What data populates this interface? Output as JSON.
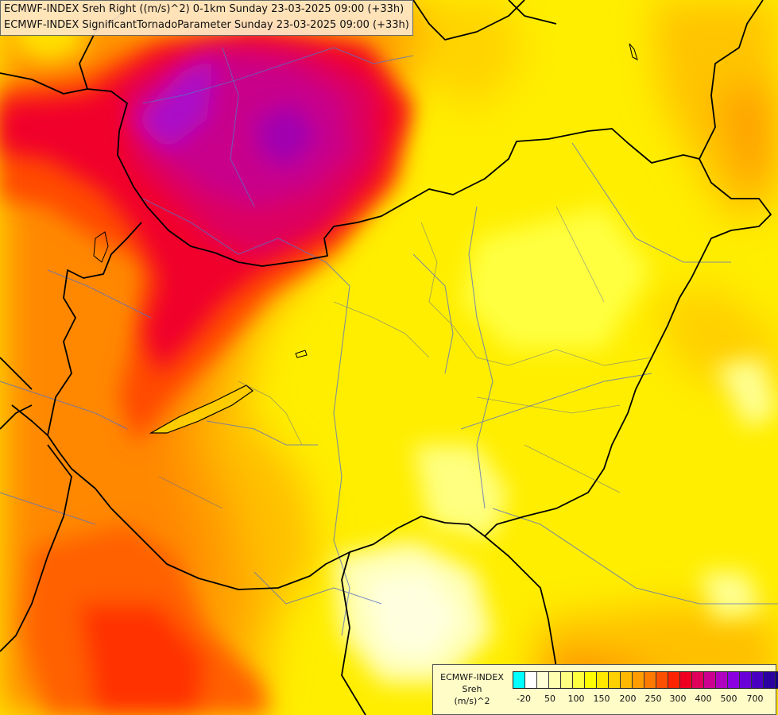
{
  "header": {
    "line1": "ECMWF-INDEX Sreh Right ((m/s)^2) 0-1km Sunday 23-03-2025 09:00 (+33h)",
    "line2": "ECMWF-INDEX SignificantTornadoParameter Sunday 23-03-2025 09:00 (+33h)"
  },
  "legend": {
    "source": "ECMWF-INDEX",
    "parameter": "Sreh",
    "unit": "(m/s)^2",
    "colors": [
      "#00ffff",
      "#ffffff",
      "#ffffd8",
      "#ffffb0",
      "#ffff80",
      "#ffff40",
      "#ffff00",
      "#ffe800",
      "#ffd000",
      "#ffb800",
      "#ff9c00",
      "#ff7a00",
      "#ff5000",
      "#ff2400",
      "#f00020",
      "#e0005c",
      "#cc0090",
      "#b000c0",
      "#8a00e0",
      "#6a00d8",
      "#4a00c0",
      "#2a00a0",
      "#100080"
    ],
    "tick_labels": [
      "-20",
      "50",
      "100",
      "150",
      "200",
      "250",
      "300",
      "400",
      "500",
      "700"
    ]
  }
}
